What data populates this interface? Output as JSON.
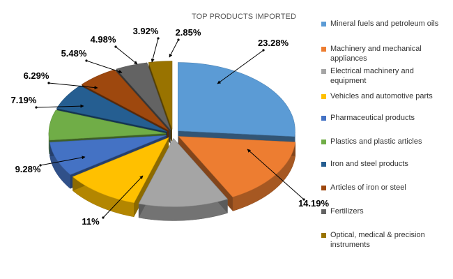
{
  "chart_data": {
    "type": "pie",
    "title": "TOP PRODUCTS IMPORTED",
    "legend_position": "right",
    "categories": [
      "Mineral fuels and petroleum oils",
      "Machinery and mechanical appliances",
      "Electrical machinery and equipment",
      "Vehicles and automotive parts",
      "Pharmaceutical products",
      "Plastics and plastic articles",
      "Iron and steel products",
      "Articles of iron or steel",
      "Fertilizers",
      "Optical, medical & precision instruments"
    ],
    "values": [
      23.28,
      14.19,
      11,
      9.28,
      7.19,
      6.29,
      5.48,
      4.98,
      3.92,
      2.85
    ],
    "data_labels": [
      "23.28%",
      "14.19%",
      "11%",
      "9.28%",
      "7.19%",
      "6.29%",
      "5.48%",
      "4.98%",
      "3.92%",
      "2.85%"
    ],
    "colors": [
      "#5B9BD5",
      "#ED7D31",
      "#A5A5A5",
      "#FFC000",
      "#4472C4",
      "#70AD47",
      "#255E91",
      "#9E480E",
      "#636363",
      "#997300"
    ]
  }
}
